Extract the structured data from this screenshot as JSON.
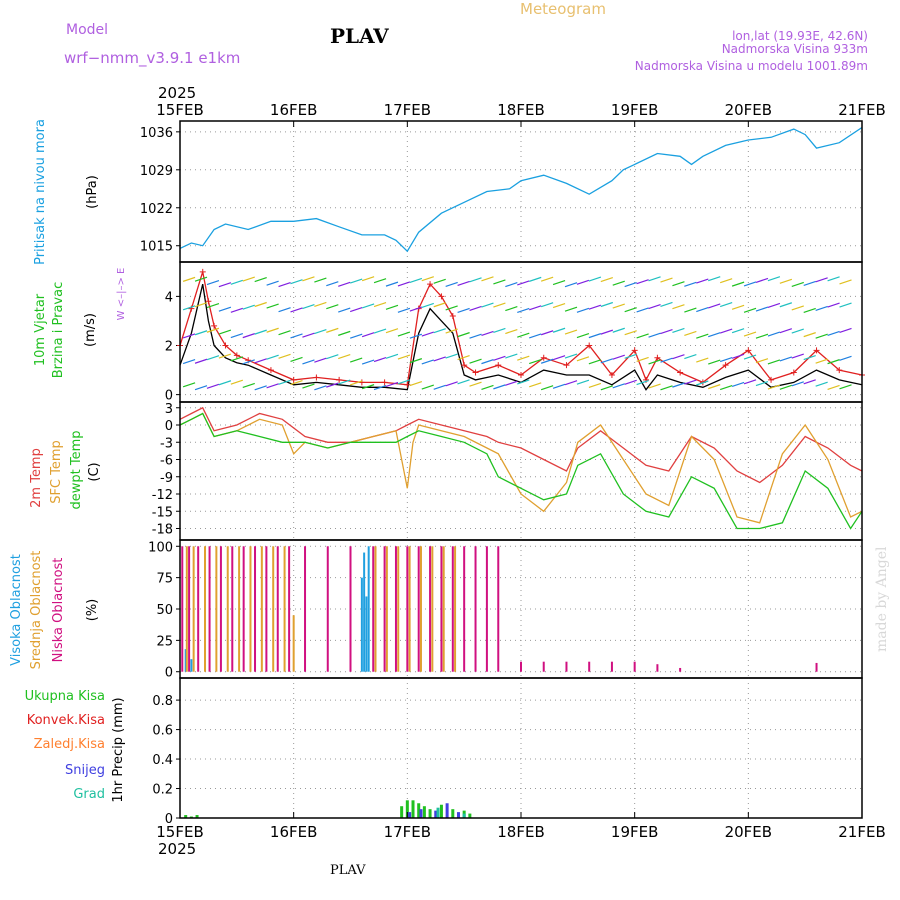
{
  "header": {
    "model_label": "Model",
    "model_name": "wrf−nmm_v3.9.1  e1km",
    "station": "PLAV",
    "title": "Meteogram",
    "coords": "lon,lat (19.93E, 42.6N)",
    "elevation": "Nadmorska Visina 933m",
    "model_elevation": "Nadmorska Visina u modelu 1001.89m",
    "year_top": "2025",
    "year_bottom": "2025",
    "footer_station": "PLAV",
    "watermark": "made by Angel"
  },
  "colors": {
    "pressure": "#1aa0e0",
    "wind_speed": "#000000",
    "gust": "#e02020",
    "temp2m": "#e04040",
    "sfc_temp": "#e0a030",
    "dewpoint": "#20c020",
    "cloud_high": "#20a0e0",
    "cloud_mid": "#e0a030",
    "cloud_low": "#d01080",
    "precip_total": "#20c020",
    "precip_conv": "#e02020",
    "precip_frozen": "#ff8030",
    "precip_snow": "#4040e0",
    "precip_grad": "#20c0a0"
  },
  "chart_data": {
    "x_tick_labels": [
      "15FEB",
      "16FEB",
      "17FEB",
      "18FEB",
      "19FEB",
      "20FEB",
      "21FEB"
    ],
    "grid": true,
    "panels": [
      {
        "id": "pressure",
        "type": "line",
        "ylabel": [
          "Pritisak na nivou mora",
          "(hPa)"
        ],
        "yticks": [
          1015,
          1022,
          1029,
          1036
        ],
        "ylim": [
          1012,
          1038
        ],
        "series": [
          {
            "color_key": "pressure",
            "x": [
              0,
              0.1,
              0.2,
              0.3,
              0.4,
              0.6,
              0.8,
              1.0,
              1.2,
              1.4,
              1.6,
              1.8,
              1.9,
              2.0,
              2.1,
              2.3,
              2.5,
              2.7,
              2.9,
              3.0,
              3.2,
              3.4,
              3.6,
              3.8,
              3.9,
              4.0,
              4.2,
              4.4,
              4.5,
              4.6,
              4.8,
              5.0,
              5.2,
              5.4,
              5.5,
              5.6,
              5.8,
              6.0
            ],
            "y": [
              1014.5,
              1015.5,
              1015.0,
              1018.0,
              1019.0,
              1018.0,
              1019.5,
              1019.5,
              1020.0,
              1018.5,
              1017.0,
              1017.0,
              1016.0,
              1014.0,
              1017.5,
              1021.0,
              1023.0,
              1025.0,
              1025.5,
              1027.0,
              1028.0,
              1026.5,
              1024.5,
              1027.0,
              1029.0,
              1030.0,
              1032.0,
              1031.5,
              1030.0,
              1031.5,
              1033.5,
              1034.5,
              1035.0,
              1036.5,
              1035.5,
              1033.0,
              1034.0,
              1036.8
            ]
          }
        ]
      },
      {
        "id": "wind",
        "type": "line",
        "ylabel": [
          "10m  Vjetar",
          "Brzina i Pravac",
          "(m/s)"
        ],
        "compass": "W <–|–> E",
        "yticks": [
          0,
          2,
          4
        ],
        "ylim": [
          -0.3,
          5.4
        ],
        "series": [
          {
            "name": "speed",
            "color_key": "wind_speed",
            "x": [
              0,
              0.1,
              0.2,
              0.25,
              0.3,
              0.4,
              0.5,
              0.6,
              0.8,
              1.0,
              1.2,
              1.4,
              1.6,
              1.8,
              2.0,
              2.1,
              2.2,
              2.3,
              2.4,
              2.5,
              2.6,
              2.8,
              3.0,
              3.2,
              3.4,
              3.6,
              3.8,
              4.0,
              4.1,
              4.2,
              4.4,
              4.6,
              4.8,
              5.0,
              5.2,
              5.4,
              5.6,
              5.8,
              6.0
            ],
            "y": [
              1.2,
              2.5,
              4.5,
              3.0,
              2.0,
              1.5,
              1.3,
              1.2,
              0.8,
              0.4,
              0.5,
              0.4,
              0.3,
              0.3,
              0.2,
              2.5,
              3.5,
              3.0,
              2.5,
              0.8,
              0.6,
              0.8,
              0.5,
              1.0,
              0.8,
              0.8,
              0.4,
              1.0,
              0.2,
              0.8,
              0.5,
              0.3,
              0.7,
              1.0,
              0.3,
              0.5,
              1.0,
              0.6,
              0.4
            ]
          },
          {
            "name": "gust",
            "color_key": "gust",
            "x": [
              0,
              0.1,
              0.2,
              0.25,
              0.3,
              0.4,
              0.5,
              0.6,
              0.8,
              1.0,
              1.2,
              1.4,
              1.6,
              1.8,
              2.0,
              2.1,
              2.2,
              2.3,
              2.4,
              2.5,
              2.6,
              2.8,
              3.0,
              3.2,
              3.4,
              3.6,
              3.8,
              4.0,
              4.1,
              4.2,
              4.4,
              4.6,
              4.8,
              5.0,
              5.2,
              5.4,
              5.6,
              5.8,
              6.0
            ],
            "y": [
              2.0,
              3.5,
              5.0,
              3.8,
              2.8,
              2.0,
              1.6,
              1.4,
              1.0,
              0.6,
              0.7,
              0.6,
              0.5,
              0.5,
              0.4,
              3.5,
              4.5,
              4.0,
              3.2,
              1.2,
              0.9,
              1.2,
              0.8,
              1.5,
              1.2,
              2.0,
              0.8,
              1.8,
              0.6,
              1.5,
              0.9,
              0.5,
              1.2,
              1.8,
              0.6,
              0.9,
              1.8,
              1.0,
              0.8
            ]
          }
        ]
      },
      {
        "id": "temperature",
        "type": "line",
        "ylabel": [
          "2m Temp",
          "SFC Temp",
          "dewpt Temp",
          "(C)"
        ],
        "yticks": [
          3,
          0,
          -3,
          -6,
          -9,
          -12,
          -15,
          -18
        ],
        "ylim": [
          -20,
          4
        ],
        "series": [
          {
            "name": "2m Temp",
            "color_key": "temp2m",
            "x": [
              0,
              0.1,
              0.2,
              0.3,
              0.5,
              0.7,
              0.9,
              1.1,
              1.3,
              1.5,
              1.7,
              1.9,
              2.0,
              2.1,
              2.3,
              2.5,
              2.7,
              2.8,
              3.0,
              3.2,
              3.4,
              3.5,
              3.7,
              3.9,
              4.1,
              4.3,
              4.5,
              4.7,
              4.9,
              5.1,
              5.3,
              5.5,
              5.7,
              5.9,
              6.0
            ],
            "y": [
              1,
              2,
              3,
              -1,
              0,
              2,
              1,
              -2,
              -3,
              -3,
              -2,
              -1,
              0,
              1,
              0,
              -1,
              -2,
              -3,
              -4,
              -6,
              -8,
              -4,
              -1,
              -4,
              -7,
              -8,
              -2,
              -4,
              -8,
              -10,
              -7,
              -2,
              -4,
              -7,
              -8
            ]
          },
          {
            "name": "SFC Temp",
            "color_key": "sfc_temp",
            "x": [
              0,
              0.1,
              0.2,
              0.3,
              0.5,
              0.7,
              0.9,
              1.0,
              1.1,
              1.3,
              1.5,
              1.7,
              1.9,
              2.0,
              2.05,
              2.1,
              2.3,
              2.5,
              2.7,
              2.8,
              3.0,
              3.2,
              3.4,
              3.5,
              3.7,
              3.9,
              4.1,
              4.3,
              4.5,
              4.7,
              4.9,
              5.1,
              5.3,
              5.5,
              5.7,
              5.9,
              6.0
            ],
            "y": [
              0,
              1,
              2,
              -2,
              -1,
              1,
              0,
              -5,
              -3,
              -4,
              -3,
              -2,
              -1,
              -11,
              -3,
              0,
              -1,
              -2,
              -4,
              -5,
              -12,
              -15,
              -10,
              -3,
              0,
              -6,
              -12,
              -14,
              -2,
              -6,
              -16,
              -17,
              -5,
              0,
              -6,
              -16,
              -15
            ]
          },
          {
            "name": "dewpt Temp",
            "color_key": "dewpoint",
            "x": [
              0,
              0.1,
              0.2,
              0.3,
              0.5,
              0.7,
              0.9,
              1.1,
              1.3,
              1.5,
              1.7,
              1.9,
              2.0,
              2.1,
              2.3,
              2.5,
              2.7,
              2.8,
              3.0,
              3.2,
              3.4,
              3.5,
              3.7,
              3.9,
              4.1,
              4.3,
              4.5,
              4.7,
              4.9,
              5.1,
              5.3,
              5.5,
              5.7,
              5.9,
              6.0
            ],
            "y": [
              0,
              1,
              2,
              -2,
              -1,
              -2,
              -3,
              -3,
              -4,
              -3,
              -3,
              -3,
              -2,
              -1,
              -2,
              -3,
              -5,
              -9,
              -11,
              -13,
              -12,
              -7,
              -5,
              -12,
              -15,
              -16,
              -9,
              -11,
              -18,
              -18,
              -17,
              -8,
              -11,
              -18,
              -15
            ]
          }
        ]
      },
      {
        "id": "clouds",
        "type": "bar",
        "ylabel": [
          "Visoka Oblacnost",
          "Srednja Oblacnost",
          "Niska Oblacnost",
          "(%)"
        ],
        "yticks": [
          0,
          25,
          50,
          75,
          100
        ],
        "ylim": [
          -5,
          105
        ],
        "series": [
          {
            "name": "Visoka Oblacnost",
            "color_key": "cloud_high",
            "x": [
              0.05,
              0.1,
              1.6,
              1.62,
              1.64,
              1.66
            ],
            "y": [
              18,
              10,
              75,
              95,
              60,
              100
            ]
          },
          {
            "name": "Srednja Oblacnost",
            "color_key": "cloud_mid",
            "x": [
              0.06,
              0.12,
              0.22,
              0.32,
              0.42,
              0.52,
              0.62,
              0.72,
              0.82,
              0.92,
              1.0,
              1.72,
              1.82,
              1.92,
              2.02,
              2.12,
              2.22,
              2.32,
              2.42
            ],
            "y": [
              100,
              100,
              100,
              100,
              100,
              100,
              100,
              100,
              100,
              100,
              45,
              100,
              100,
              100,
              100,
              100,
              100,
              100,
              100
            ]
          },
          {
            "name": "Niska Oblacnost",
            "color_key": "cloud_low",
            "x": [
              0.02,
              0.08,
              0.16,
              0.26,
              0.36,
              0.46,
              0.56,
              0.66,
              0.76,
              0.86,
              0.96,
              1.1,
              1.3,
              1.5,
              1.7,
              1.8,
              1.9,
              2.0,
              2.1,
              2.2,
              2.3,
              2.4,
              2.5,
              2.6,
              2.7,
              2.8,
              3.0,
              3.2,
              3.4,
              3.6,
              3.8,
              4.0,
              4.2,
              4.4,
              5.6
            ],
            "y": [
              100,
              100,
              100,
              100,
              100,
              100,
              100,
              100,
              100,
              100,
              100,
              100,
              100,
              100,
              100,
              100,
              100,
              100,
              100,
              100,
              100,
              100,
              100,
              100,
              100,
              100,
              8,
              8,
              8,
              8,
              8,
              8,
              6,
              3,
              7
            ]
          }
        ]
      },
      {
        "id": "precip",
        "type": "bar",
        "ylabel": [
          "1hr  Precip  (mm)"
        ],
        "legend": [
          "Ukupna  Kisa",
          "Konvek.Kisa",
          "Zaledj.Kisa",
          "Snijeg",
          "Grad"
        ],
        "yticks": [
          0,
          0.2,
          0.4,
          0.6,
          0.8
        ],
        "ylim": [
          0,
          0.95
        ],
        "series": [
          {
            "name": "Ukupna  Kisa",
            "color_key": "precip_total",
            "x": [
              0.05,
              0.1,
              0.15,
              1.95,
              2.0,
              2.05,
              2.1,
              2.15,
              2.2,
              2.3,
              2.4,
              2.5,
              2.55
            ],
            "y": [
              0.02,
              0.01,
              0.02,
              0.08,
              0.12,
              0.12,
              0.1,
              0.08,
              0.06,
              0.09,
              0.06,
              0.05,
              0.03
            ]
          },
          {
            "name": "Snijeg",
            "color_key": "precip_snow",
            "x": [
              2.02,
              2.12,
              2.25,
              2.35,
              2.45
            ],
            "y": [
              0.04,
              0.06,
              0.05,
              0.1,
              0.04
            ]
          },
          {
            "name": "Grad",
            "color_key": "precip_grad",
            "x": [
              2.27,
              2.5
            ],
            "y": [
              0.07,
              0.03
            ]
          }
        ]
      }
    ]
  }
}
